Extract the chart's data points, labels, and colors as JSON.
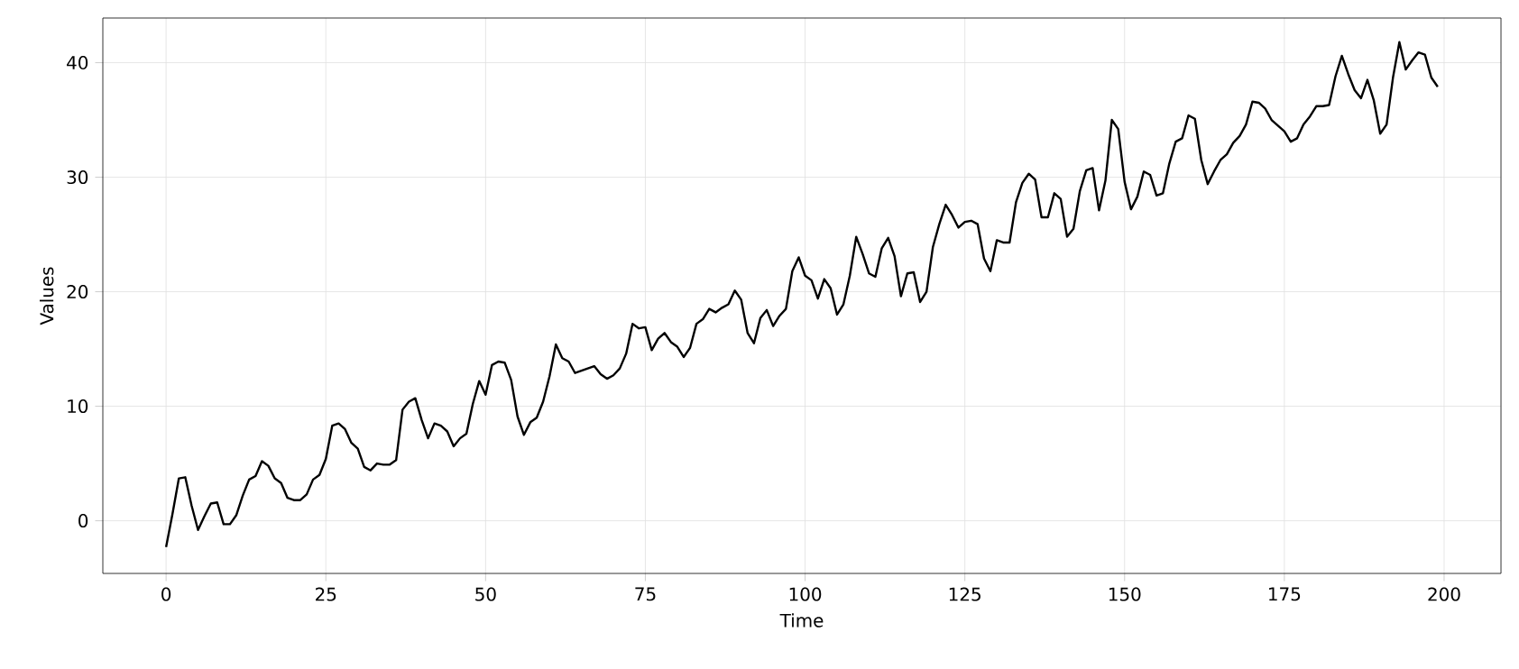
{
  "chart_data": {
    "type": "line",
    "xlabel": "Time",
    "ylabel": "Values",
    "x": [
      0,
      1,
      2,
      3,
      4,
      5,
      6,
      7,
      8,
      9,
      10,
      11,
      12,
      13,
      14,
      15,
      16,
      17,
      18,
      19,
      20,
      21,
      22,
      23,
      24,
      25,
      26,
      27,
      28,
      29,
      30,
      31,
      32,
      33,
      34,
      35,
      36,
      37,
      38,
      39,
      40,
      41,
      42,
      43,
      44,
      45,
      46,
      47,
      48,
      49,
      50,
      51,
      52,
      53,
      54,
      55,
      56,
      57,
      58,
      59,
      60,
      61,
      62,
      63,
      64,
      65,
      66,
      67,
      68,
      69,
      70,
      71,
      72,
      73,
      74,
      75,
      76,
      77,
      78,
      79,
      80,
      81,
      82,
      83,
      84,
      85,
      86,
      87,
      88,
      89,
      90,
      91,
      92,
      93,
      94,
      95,
      96,
      97,
      98,
      99,
      100,
      101,
      102,
      103,
      104,
      105,
      106,
      107,
      108,
      109,
      110,
      111,
      112,
      113,
      114,
      115,
      116,
      117,
      118,
      119,
      120,
      121,
      122,
      123,
      124,
      125,
      126,
      127,
      128,
      129,
      130,
      131,
      132,
      133,
      134,
      135,
      136,
      137,
      138,
      139,
      140,
      141,
      142,
      143,
      144,
      145,
      146,
      147,
      148,
      149,
      150,
      151,
      152,
      153,
      154,
      155,
      156,
      157,
      158,
      159,
      160,
      161,
      162,
      163,
      164,
      165,
      166,
      167,
      168,
      169,
      170,
      171,
      172,
      173,
      174,
      175,
      176,
      177,
      178,
      179,
      180,
      181,
      182,
      183,
      184,
      185,
      186,
      187,
      188,
      189,
      190,
      191,
      192,
      193,
      194,
      195,
      196,
      197,
      198,
      199
    ],
    "series": [
      {
        "color": "#000000",
        "values": [
          -2.3,
          0.6,
          3.7,
          3.8,
          1.3,
          -0.8,
          0.4,
          1.5,
          1.6,
          -0.3,
          -0.3,
          0.5,
          2.2,
          3.6,
          3.9,
          5.2,
          4.8,
          3.7,
          3.3,
          2.0,
          1.8,
          1.8,
          2.3,
          3.6,
          4.0,
          5.4,
          8.3,
          8.5,
          8.0,
          6.8,
          6.3,
          4.7,
          4.4,
          5.0,
          4.9,
          4.9,
          5.3,
          9.7,
          10.4,
          10.7,
          8.8,
          7.2,
          8.5,
          8.3,
          7.8,
          6.5,
          7.2,
          7.6,
          10.2,
          12.2,
          11.0,
          13.6,
          13.9,
          13.8,
          12.3,
          9.1,
          7.5,
          8.6,
          9.0,
          10.4,
          12.6,
          15.4,
          14.2,
          13.9,
          12.9,
          13.1,
          13.3,
          13.5,
          12.8,
          12.4,
          12.7,
          13.3,
          14.6,
          17.2,
          16.8,
          16.9,
          14.9,
          15.9,
          16.4,
          15.6,
          15.2,
          14.3,
          15.1,
          17.2,
          17.6,
          18.5,
          18.2,
          18.6,
          18.9,
          20.1,
          19.3,
          16.4,
          15.5,
          17.7,
          18.4,
          17.0,
          17.9,
          18.5,
          21.8,
          23.0,
          21.4,
          21.0,
          19.4,
          21.1,
          20.3,
          18.0,
          18.9,
          21.4,
          24.8,
          23.3,
          21.6,
          21.3,
          23.8,
          24.7,
          23.1,
          19.6,
          21.6,
          21.7,
          19.1,
          20.0,
          23.9,
          25.9,
          27.6,
          26.7,
          25.6,
          26.1,
          26.2,
          25.9,
          22.9,
          21.8,
          24.5,
          24.3,
          24.3,
          27.8,
          29.5,
          30.3,
          29.8,
          26.5,
          26.5,
          28.6,
          28.1,
          24.8,
          25.5,
          28.8,
          30.6,
          30.8,
          27.1,
          29.7,
          35.0,
          34.2,
          29.6,
          27.2,
          28.3,
          30.5,
          30.2,
          28.4,
          28.6,
          31.2,
          33.1,
          33.4,
          35.4,
          35.1,
          31.5,
          29.4,
          30.5,
          31.5,
          32.0,
          33.0,
          33.6,
          34.6,
          36.6,
          36.5,
          36.0,
          35.0,
          34.5,
          34.0,
          33.1,
          33.4,
          34.6,
          35.3,
          36.2,
          36.2,
          36.3,
          38.8,
          40.6,
          39.0,
          37.6,
          36.9,
          38.5,
          36.7,
          33.8,
          34.6,
          38.7,
          41.8,
          39.4,
          40.2,
          40.9,
          40.7,
          38.7,
          37.9
        ]
      }
    ],
    "xlim": [
      -9.9,
      208.9
    ],
    "ylim": [
      -4.6,
      43.9
    ],
    "xticks": [
      0,
      25,
      50,
      75,
      100,
      125,
      150,
      175,
      200
    ],
    "yticks": [
      0,
      10,
      20,
      30,
      40
    ],
    "grid": true,
    "marker": "none",
    "line_style": "solid"
  }
}
